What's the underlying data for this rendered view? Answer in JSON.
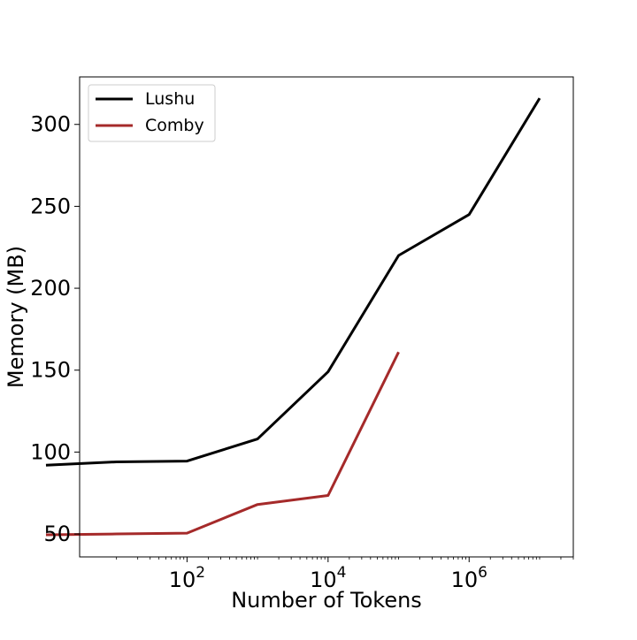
{
  "chart_data": {
    "type": "line",
    "title": "",
    "xlabel": "Number of Tokens",
    "ylabel": "Memory (MB)",
    "x_scale": "log",
    "xlim": [
      3,
      30000000
    ],
    "ylim": [
      36,
      329
    ],
    "x_ticks": [
      {
        "value": 100,
        "base": "10",
        "exp": "2"
      },
      {
        "value": 10000,
        "base": "10",
        "exp": "4"
      },
      {
        "value": 1000000,
        "base": "10",
        "exp": "6"
      }
    ],
    "y_ticks": [
      50,
      100,
      150,
      200,
      250,
      300
    ],
    "grid": false,
    "legend_position": "top-left",
    "series": [
      {
        "name": "Lushu",
        "color": "#000000",
        "x": [
          1,
          10,
          100,
          1000,
          10000,
          100000,
          1000000,
          10000000
        ],
        "y": [
          92,
          94,
          94.5,
          108,
          149,
          220,
          245,
          316
        ]
      },
      {
        "name": "Comby",
        "color": "#a52a2a",
        "x": [
          1,
          10,
          100,
          1000,
          10000,
          100000
        ],
        "y": [
          49.5,
          50,
          50.5,
          68,
          73.5,
          161
        ]
      }
    ]
  }
}
